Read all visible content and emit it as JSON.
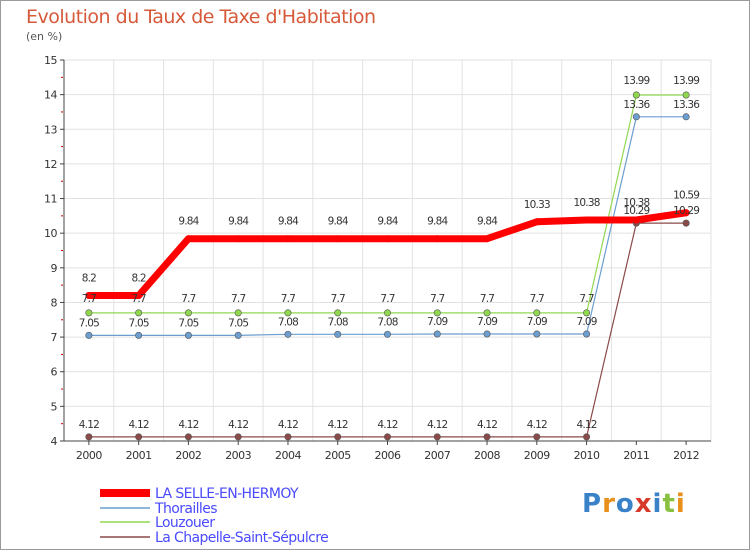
{
  "chart_data": {
    "type": "line",
    "title": "Evolution du Taux de Taxe d'Habitation",
    "subtitle": "(en %)",
    "xlabel": "",
    "ylabel": "",
    "categories": [
      "2000",
      "2001",
      "2002",
      "2003",
      "2004",
      "2005",
      "2006",
      "2007",
      "2008",
      "2009",
      "2010",
      "2011",
      "2012"
    ],
    "ylim": [
      4,
      15
    ],
    "yticks": [
      "4",
      "5",
      "6",
      "7",
      "8",
      "9",
      "10",
      "11",
      "12",
      "13",
      "14",
      "15"
    ],
    "legend_position": "bottom-left",
    "series": [
      {
        "name": "LA SELLE-EN-HERMOY",
        "color": "#ff0000",
        "values": [
          8.2,
          8.2,
          9.84,
          9.84,
          9.84,
          9.84,
          9.84,
          9.84,
          9.84,
          10.33,
          10.38,
          10.38,
          10.59
        ],
        "labels": [
          "8.2",
          "8.2",
          "9.84",
          "9.84",
          "9.84",
          "9.84",
          "9.84",
          "9.84",
          "9.84",
          "10.33",
          "10.38",
          "10.38",
          "10.59"
        ]
      },
      {
        "name": "Thorailles",
        "color": "#6c9ed0",
        "values": [
          7.05,
          7.05,
          7.05,
          7.05,
          7.08,
          7.08,
          7.08,
          7.09,
          7.09,
          7.09,
          7.09,
          13.36,
          13.36
        ],
        "labels": [
          "7.05",
          "7.05",
          "7.05",
          "7.05",
          "7.08",
          "7.08",
          "7.08",
          "7.09",
          "7.09",
          "7.09",
          "7.09",
          "13.36",
          "13.36"
        ]
      },
      {
        "name": "Louzouer",
        "color": "#90d850",
        "values": [
          7.7,
          7.7,
          7.7,
          7.7,
          7.7,
          7.7,
          7.7,
          7.7,
          7.7,
          7.7,
          7.7,
          13.99,
          13.99
        ],
        "labels": [
          "7.7",
          "7.7",
          "7.7",
          "7.7",
          "7.7",
          "7.7",
          "7.7",
          "7.7",
          "7.7",
          "7.7",
          "7.7",
          "13.99",
          "13.99"
        ]
      },
      {
        "name": "La Chapelle-Saint-Sépulcre",
        "color": "#8a4a4a",
        "values": [
          4.12,
          4.12,
          4.12,
          4.12,
          4.12,
          4.12,
          4.12,
          4.12,
          4.12,
          4.12,
          4.12,
          10.29,
          10.29
        ],
        "labels": [
          "4.12",
          "4.12",
          "4.12",
          "4.12",
          "4.12",
          "4.12",
          "4.12",
          "4.12",
          "4.12",
          "4.12",
          "4.12",
          "10.29",
          "10.29"
        ]
      }
    ]
  },
  "brand": {
    "text": "Proxiti"
  }
}
